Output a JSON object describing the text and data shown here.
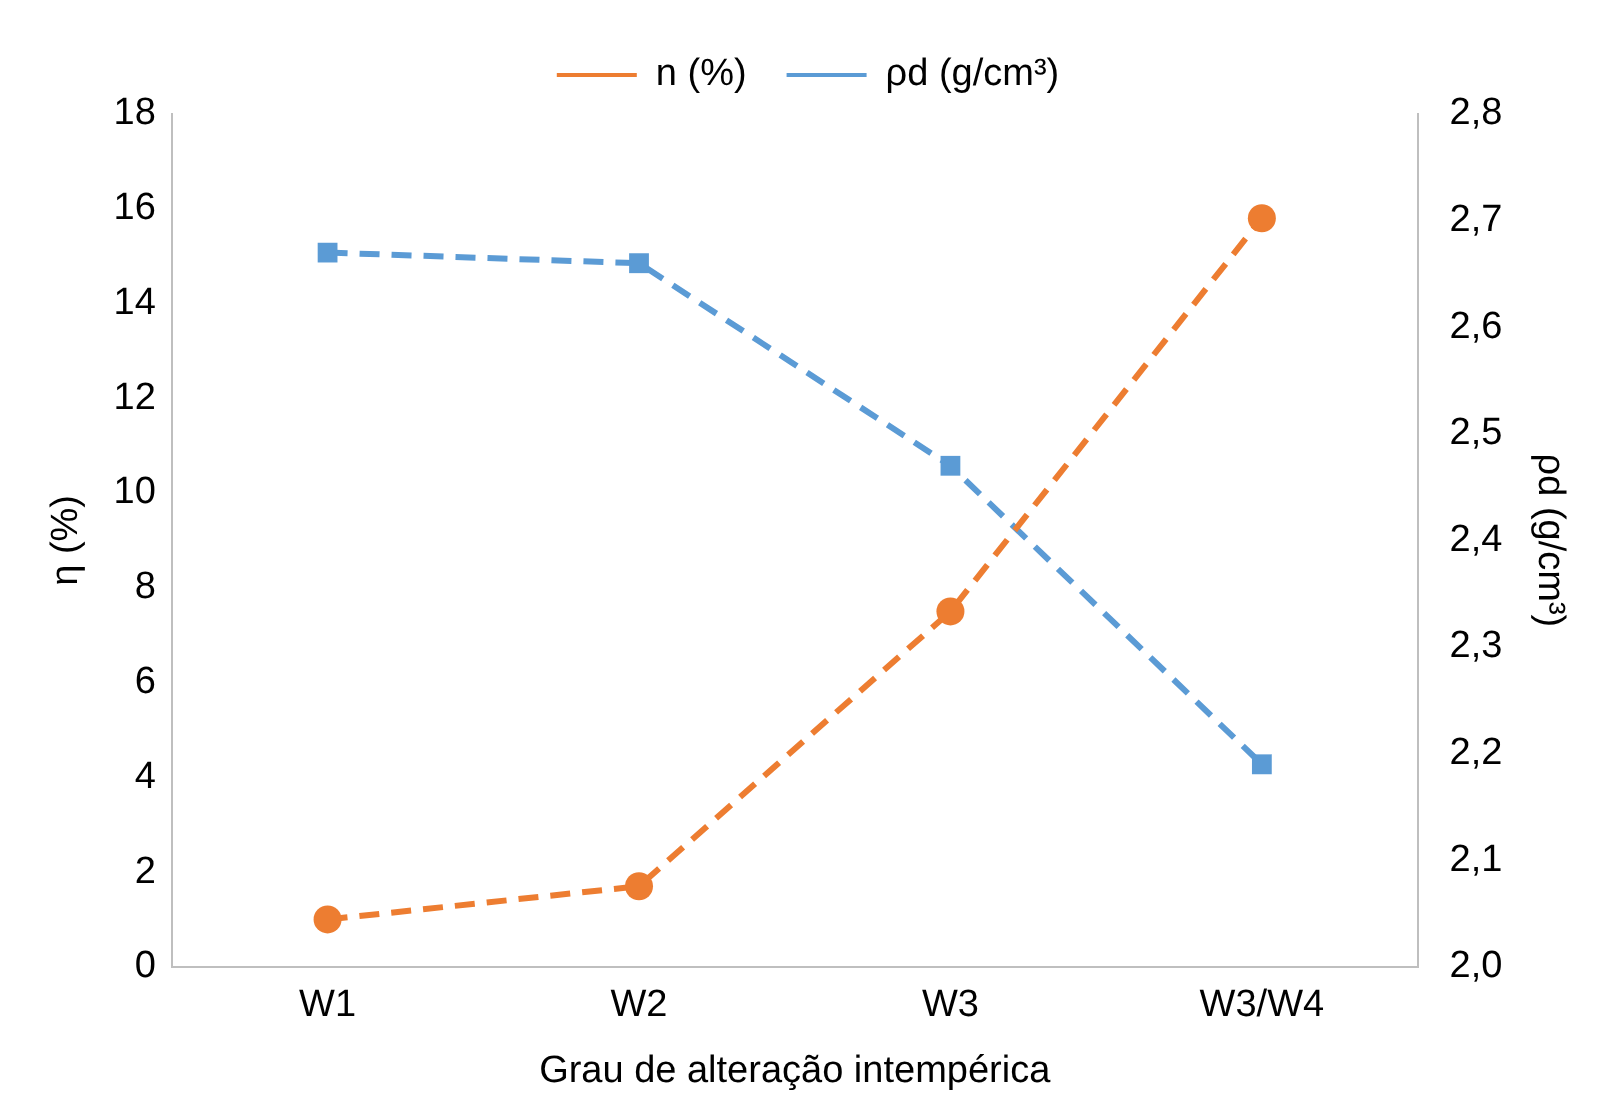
{
  "chart_data": {
    "type": "line",
    "xlabel": "Grau de alteração intempérica",
    "ylabel": "η (%)",
    "y2label": "ρd (g/cm³)",
    "categories": [
      "W1",
      "W2",
      "W3",
      "W3/W4"
    ],
    "series": [
      {
        "name": "n (%)",
        "color": "#ed7d31",
        "values": [
          1.0,
          1.7,
          7.5,
          15.8
        ],
        "marker": "circle",
        "line_style": "dashed"
      },
      {
        "name": "ρd (g/cm³)",
        "color": "#5b9bd5",
        "values": [
          2.67,
          2.66,
          2.47,
          2.19
        ],
        "marker": "square",
        "line_style": "dashed",
        "axis": "y2"
      }
    ],
    "ylim": [
      0,
      18
    ],
    "yticks": [
      0,
      2,
      4,
      6,
      8,
      10,
      12,
      14,
      16,
      18
    ],
    "y2lim": [
      2.0,
      2.8
    ],
    "y2ticks": [
      {
        "value": 2.0,
        "label": "2,0"
      },
      {
        "value": 2.1,
        "label": "2,1"
      },
      {
        "value": 2.2,
        "label": "2,2"
      },
      {
        "value": 2.3,
        "label": "2,3"
      },
      {
        "value": 2.4,
        "label": "2,4"
      },
      {
        "value": 2.5,
        "label": "2,5"
      },
      {
        "value": 2.6,
        "label": "2,6"
      },
      {
        "value": 2.7,
        "label": "2,7"
      },
      {
        "value": 2.8,
        "label": "2,8"
      }
    ],
    "grid": false,
    "legend": "top"
  }
}
